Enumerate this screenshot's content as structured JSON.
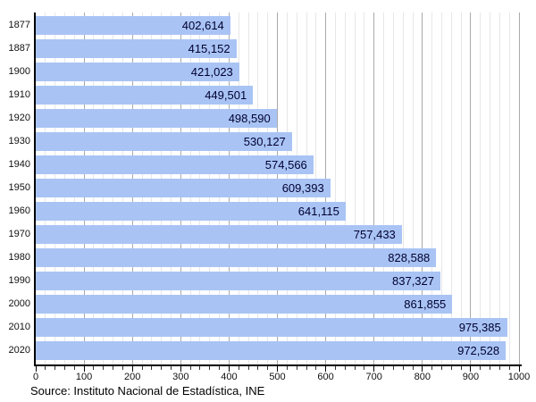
{
  "chart_data": {
    "type": "bar",
    "orientation": "horizontal",
    "title": "",
    "xlabel": "",
    "ylabel": "",
    "categories": [
      "1877",
      "1887",
      "1900",
      "1910",
      "1920",
      "1930",
      "1940",
      "1950",
      "1960",
      "1970",
      "1980",
      "1990",
      "2000",
      "2010",
      "2020"
    ],
    "values": [
      402614,
      415152,
      421023,
      449501,
      498590,
      530127,
      574566,
      609393,
      641115,
      757433,
      828588,
      837327,
      861855,
      975385,
      972528
    ],
    "value_labels": [
      "402,614",
      "415,152",
      "421,023",
      "449,501",
      "498,590",
      "530,127",
      "574,566",
      "609,393",
      "641,115",
      "757,433",
      "828,588",
      "837,327",
      "861,855",
      "975,385",
      "972,528"
    ],
    "xlim": [
      0,
      1000000
    ],
    "x_tick_labels": [
      "0",
      "100",
      "200",
      "300",
      "400",
      "500",
      "600",
      "700",
      "800",
      "900",
      "1000"
    ],
    "x_major_step": 100000,
    "x_minor_step": 20000,
    "grid": true,
    "legend": "none",
    "bar_color": "#a9c4f4",
    "value_text_color": "#000030",
    "major_grid_color": "#aaaaaa",
    "minor_grid_color": "#e7e7e7"
  },
  "source": {
    "text": "Source: Instituto Nacional de Estadística, INE"
  }
}
